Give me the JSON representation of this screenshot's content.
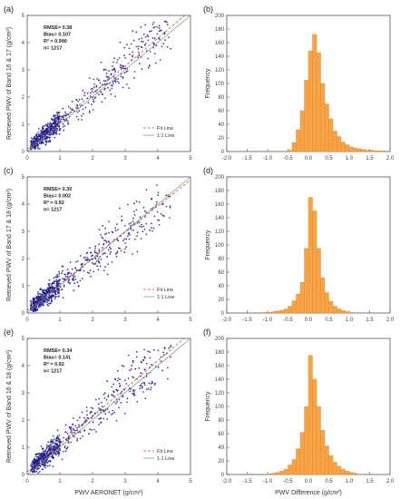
{
  "figure": {
    "left_ylabels": [
      "Retrieved PWV of Band 16 & 17 (g/cm²)",
      "Retrieved PWV of Band 17 & 18 (g/cm²)",
      "Retrieved PWV of Band 16 & 18 (g/cm²)"
    ],
    "scatter_xlabel": "PWV AERONET (g/cm²)",
    "hist_ylabel": "Frequency",
    "hist_xlabel": "PWV Difference (g/cm²)",
    "colors": {
      "point": "#1f1f8c",
      "fit_line": "#e0404a",
      "one_to_one": "#7fa37f",
      "bar": "#f7a447",
      "bar_edge": "#e08a30",
      "axis": "#555555"
    }
  },
  "chart_data": [
    {
      "type": "scatter",
      "panel_label": "(a)",
      "xlim": [
        0,
        5
      ],
      "ylim": [
        0,
        5
      ],
      "xticks": [
        0,
        1,
        2,
        3,
        4,
        5
      ],
      "yticks": [
        0,
        1,
        2,
        3,
        4,
        5
      ],
      "stats": [
        "RMSE= 0.38",
        "Bias= 0.107",
        "R² = 0.990",
        "n= 1217"
      ],
      "legend": [
        "Fit Line",
        "1:1 Line"
      ],
      "legend_position": "bottom-right",
      "fit_line": {
        "slope": 1.02,
        "intercept": 0.08
      },
      "one_to_one": true,
      "n_points": 1217,
      "points_shown": 700
    },
    {
      "type": "bar",
      "panel_label": "(b)",
      "xlim": [
        -2.0,
        2.0
      ],
      "ylim": [
        0,
        200
      ],
      "xticks": [
        "-2.0",
        "-1.5",
        "-1.0",
        "-0.5",
        "0.0",
        "0.5",
        "1.0",
        "1.5",
        "2.0"
      ],
      "yticks": [
        0,
        20,
        40,
        60,
        80,
        100,
        120,
        140,
        160,
        180,
        200
      ],
      "bin_width": 0.1,
      "bin_starts": [
        -0.5,
        -0.4,
        -0.3,
        -0.2,
        -0.1,
        0.0,
        0.1,
        0.2,
        0.3,
        0.4,
        0.5,
        0.6,
        0.7,
        0.8,
        0.9,
        1.0,
        1.1,
        1.2,
        1.3,
        1.4,
        1.5,
        1.6,
        1.7,
        1.8
      ],
      "values": [
        2,
        13,
        32,
        60,
        105,
        148,
        172,
        145,
        100,
        70,
        48,
        30,
        22,
        14,
        10,
        7,
        5,
        4,
        3,
        2,
        2,
        1,
        1,
        1
      ]
    },
    {
      "type": "scatter",
      "panel_label": "(c)",
      "xlim": [
        0,
        5
      ],
      "ylim": [
        0,
        5
      ],
      "xticks": [
        0,
        1,
        2,
        3,
        4,
        5
      ],
      "yticks": [
        0,
        1,
        2,
        3,
        4,
        5
      ],
      "stats": [
        "RMSE= 0.30",
        "Bias= 0.002",
        "R² = 0.92",
        "n= 1217"
      ],
      "legend": [
        "Fit Line",
        "1:1 Line"
      ],
      "legend_position": "bottom-right",
      "fit_line": {
        "slope": 0.96,
        "intercept": 0.09
      },
      "one_to_one": true,
      "n_points": 1217,
      "points_shown": 700
    },
    {
      "type": "bar",
      "panel_label": "(d)",
      "xlim": [
        -2.0,
        2.0
      ],
      "ylim": [
        0,
        200
      ],
      "xticks": [
        "-2.0",
        "-1.5",
        "-1.0",
        "-0.5",
        "0.0",
        "0.5",
        "1.0",
        "1.5",
        "2.0"
      ],
      "yticks": [
        0,
        20,
        40,
        60,
        80,
        100,
        120,
        140,
        160,
        180,
        200
      ],
      "bin_width": 0.1,
      "bin_starts": [
        -1.1,
        -1.0,
        -0.9,
        -0.8,
        -0.7,
        -0.6,
        -0.5,
        -0.4,
        -0.3,
        -0.2,
        -0.1,
        0.0,
        0.1,
        0.2,
        0.3,
        0.4,
        0.5,
        0.6,
        0.7,
        0.8,
        0.9,
        1.0
      ],
      "values": [
        1,
        1,
        2,
        3,
        4,
        6,
        10,
        18,
        28,
        45,
        95,
        170,
        150,
        95,
        52,
        30,
        17,
        10,
        6,
        4,
        2,
        1
      ]
    },
    {
      "type": "scatter",
      "panel_label": "(e)",
      "xlim": [
        0,
        5
      ],
      "ylim": [
        0,
        5
      ],
      "xticks": [
        0,
        1,
        2,
        3,
        4,
        5
      ],
      "yticks": [
        0,
        1,
        2,
        3,
        4,
        5
      ],
      "stats": [
        "RMSE= 0.34",
        "Bias= 0.141",
        "R² = 0.92",
        "n= 1217"
      ],
      "legend": [
        "Fit Line",
        "1:1 Line"
      ],
      "legend_position": "bottom-right",
      "fit_line": {
        "slope": 1.02,
        "intercept": 0.1
      },
      "one_to_one": true,
      "n_points": 1217,
      "points_shown": 700
    },
    {
      "type": "bar",
      "panel_label": "(f)",
      "xlim": [
        -2.0,
        2.0
      ],
      "ylim": [
        0,
        200
      ],
      "xticks": [
        "-2.0",
        "-1.5",
        "-1.0",
        "-0.5",
        "0.0",
        "0.5",
        "1.0",
        "1.5",
        "2.0"
      ],
      "yticks": [
        0,
        20,
        40,
        60,
        80,
        100,
        120,
        140,
        160,
        180,
        200
      ],
      "bin_width": 0.1,
      "bin_starts": [
        -1.0,
        -0.9,
        -0.8,
        -0.7,
        -0.6,
        -0.5,
        -0.4,
        -0.3,
        -0.2,
        -0.1,
        0.0,
        0.1,
        0.2,
        0.3,
        0.4,
        0.5,
        0.6,
        0.7,
        0.8,
        0.9,
        1.0,
        1.1
      ],
      "values": [
        1,
        2,
        3,
        5,
        8,
        14,
        22,
        38,
        62,
        100,
        175,
        140,
        100,
        65,
        42,
        28,
        18,
        12,
        8,
        5,
        3,
        2
      ]
    }
  ]
}
